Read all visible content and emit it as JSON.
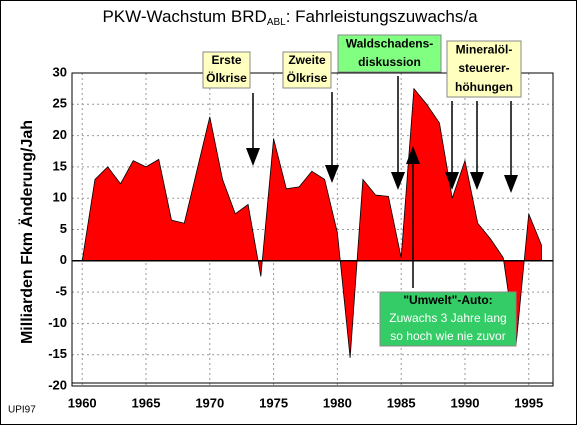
{
  "chart_data": {
    "type": "area",
    "title": "PKW-Wachstum BRD",
    "title_subscript": "ABL",
    "title_rest": ": Fahrleistungszuwachs/a",
    "y_label": "Milliarden Fkm Änderung/Jah",
    "footnote": "UPI97",
    "color": "#ff0000",
    "x": [
      1960,
      1961,
      1962,
      1963,
      1964,
      1965,
      1966,
      1967,
      1968,
      1969,
      1970,
      1971,
      1972,
      1973,
      1974,
      1975,
      1976,
      1977,
      1978,
      1979,
      1980,
      1981,
      1982,
      1983,
      1984,
      1985,
      1986,
      1987,
      1988,
      1989,
      1990,
      1991,
      1992,
      1993,
      1994,
      1995,
      1996
    ],
    "values": [
      0,
      13,
      15,
      12.3,
      16,
      15,
      16.2,
      6.5,
      6,
      14.5,
      23,
      13,
      7.5,
      9,
      -2.5,
      19.5,
      11.5,
      11.8,
      14.3,
      13,
      4.5,
      -15.5,
      13,
      10.5,
      10.3,
      0.5,
      27.5,
      25,
      22,
      10,
      16,
      6,
      3.5,
      0.5,
      -13.5,
      7.5,
      2.5
    ],
    "xlim": [
      1959.2,
      1996.9
    ],
    "xticks": [
      1960,
      1965,
      1970,
      1975,
      1980,
      1985,
      1990,
      1995
    ],
    "ylim": [
      -20,
      30
    ],
    "yticks": [
      -20,
      -15,
      -10,
      -5,
      0,
      5,
      10,
      15,
      20,
      25,
      30
    ],
    "grid": true,
    "annotations": [
      {
        "lines": [
          "Erste",
          "Ölkrise"
        ]
      },
      {
        "lines": [
          "Zweite",
          "Ölkrise"
        ]
      },
      {
        "lines": [
          "Waldschadens-",
          "diskussion"
        ]
      },
      {
        "lines": [
          "Mineralöl-",
          "steuerer-",
          "höhungen"
        ]
      },
      {
        "lines": [
          "\"Umwelt\"-Auto:",
          "Zuwachs 3 Jahre lang",
          "so hoch wie nie zuvor"
        ]
      }
    ]
  }
}
